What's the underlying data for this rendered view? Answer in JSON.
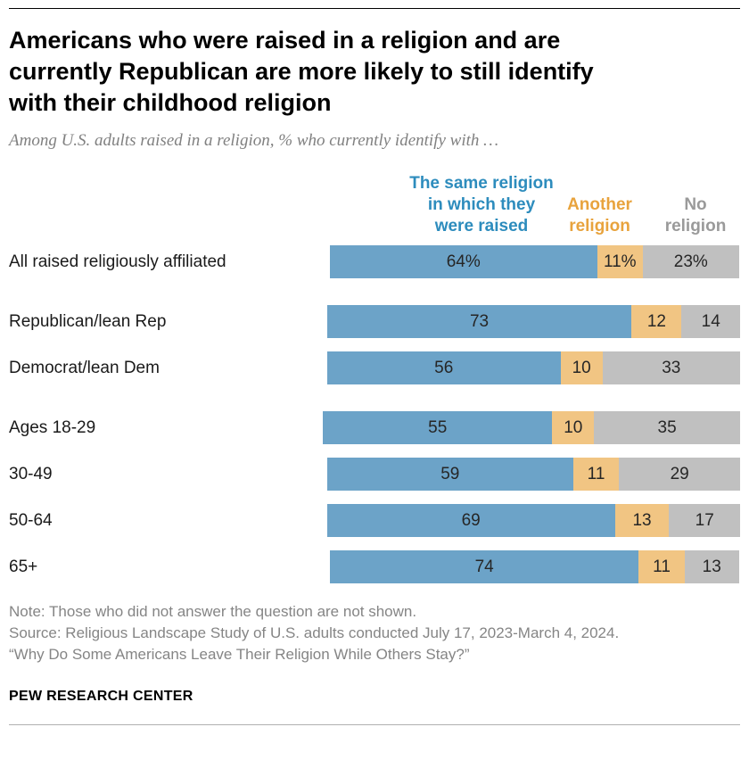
{
  "page": {
    "title": "Americans who were raised in a religion and are\ncurrently Republican are more likely to still identify\nwith their childhood religion",
    "subtitle": "Among U.S. adults raised in a religion, % who currently identify with …",
    "notes": [
      "Note: Those who did not answer the question are not shown.",
      "Source: Religious Landscape Study of U.S. adults conducted July 17, 2023-March 4, 2024.",
      "“Why Do Some Americans Leave Their Religion While Others Stay?”"
    ],
    "footer": "PEW RESEARCH CENTER"
  },
  "chart_data": {
    "type": "bar",
    "orientation": "horizontal-stacked",
    "unit": "%",
    "scale_max": 100,
    "legend_position": "top",
    "grid": false,
    "legend": [
      {
        "key": "same-religion",
        "label": "The same religion in which they were raised",
        "label_display": "The same religion\nin which they\nwere raised",
        "color": "#6ca3c8",
        "text_color": "#2d8cbd"
      },
      {
        "key": "another-religion",
        "label": "Another religion",
        "label_display": "Another\nreligion",
        "color": "#f1c583",
        "text_color": "#e8a33d"
      },
      {
        "key": "no-religion",
        "label": "No religion",
        "label_display": "No\nreligion",
        "color": "#c0c0c0",
        "text_color": "#9a9a9a"
      }
    ],
    "rows": [
      {
        "label": "All raised religiously affiliated",
        "values": [
          64,
          11,
          23
        ],
        "display": [
          "64%",
          "11%",
          "23%"
        ],
        "group_start": false
      },
      {
        "label": "Republican/lean Rep",
        "values": [
          73,
          12,
          14
        ],
        "display": [
          "73",
          "12",
          "14"
        ],
        "group_start": true
      },
      {
        "label": "Democrat/lean Dem",
        "values": [
          56,
          10,
          33
        ],
        "display": [
          "56",
          "10",
          "33"
        ],
        "group_start": false
      },
      {
        "label": "Ages 18-29",
        "values": [
          55,
          10,
          35
        ],
        "display": [
          "55",
          "10",
          "35"
        ],
        "group_start": true
      },
      {
        "label": "30-49",
        "values": [
          59,
          11,
          29
        ],
        "display": [
          "59",
          "11",
          "29"
        ],
        "group_start": false
      },
      {
        "label": "50-64",
        "values": [
          69,
          13,
          17
        ],
        "display": [
          "69",
          "13",
          "17"
        ],
        "group_start": false
      },
      {
        "label": "65+",
        "values": [
          74,
          11,
          13
        ],
        "display": [
          "74",
          "11",
          "13"
        ],
        "group_start": false
      }
    ]
  }
}
